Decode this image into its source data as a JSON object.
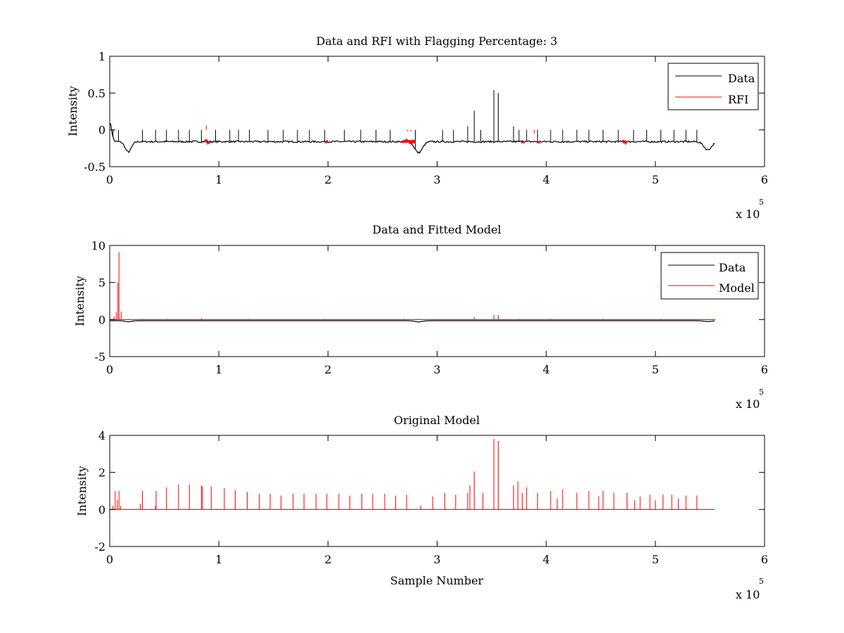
{
  "figure": {
    "background": "#ffffff",
    "axes_color": "#000000"
  },
  "chart_data": [
    {
      "type": "line",
      "title": "Data and RFI with Flagging Percentage: 3",
      "xlabel": "",
      "ylabel": "Intensity",
      "xlim": [
        0,
        600000
      ],
      "ylim": [
        -0.5,
        1
      ],
      "x_ticks": [
        "0",
        "1",
        "2",
        "3",
        "4",
        "5",
        "6"
      ],
      "y_ticks": [
        "-0.5",
        "0",
        "0.5",
        "1"
      ],
      "x_ticks_values": [
        0,
        100000,
        200000,
        300000,
        400000,
        500000,
        600000
      ],
      "y_ticks_values": [
        -0.5,
        0,
        0.5,
        1
      ],
      "x_exponent_label": "x 10",
      "x_exponent_power": "5",
      "legend_position": "top-right",
      "series": [
        {
          "name": "Data",
          "color": "#000000",
          "baseline": -0.16,
          "noise": 0.012,
          "x_end": 555000,
          "dips": [
            [
              0,
              0.1,
              2500
            ],
            [
              17000,
              -0.3,
              4000
            ],
            [
              283000,
              -0.31,
              5000
            ],
            [
              548000,
              -0.27,
              5000
            ]
          ],
          "spikes": [
            [
              3000,
              0.0
            ],
            [
              8000,
              0.0
            ],
            [
              30000,
              0.0
            ],
            [
              42000,
              0.0
            ],
            [
              52000,
              0.0
            ],
            [
              63000,
              0.0
            ],
            [
              73000,
              0.0
            ],
            [
              84000,
              0.0
            ],
            [
              97000,
              0.0
            ],
            [
              110000,
              0.0
            ],
            [
              118000,
              0.0
            ],
            [
              128000,
              0.0
            ],
            [
              145000,
              0.0
            ],
            [
              159000,
              0.0
            ],
            [
              172000,
              0.0
            ],
            [
              183000,
              0.0
            ],
            [
              197000,
              0.0
            ],
            [
              215000,
              0.0
            ],
            [
              230000,
              0.0
            ],
            [
              244000,
              0.0
            ],
            [
              257000,
              0.0
            ],
            [
              280000,
              0.0
            ],
            [
              305000,
              0.0
            ],
            [
              315000,
              0.0
            ],
            [
              328000,
              0.05
            ],
            [
              334000,
              0.26
            ],
            [
              340000,
              0.0
            ],
            [
              352000,
              0.54
            ],
            [
              356000,
              0.5
            ],
            [
              370000,
              0.05
            ],
            [
              375000,
              0.0
            ],
            [
              382000,
              0.0
            ],
            [
              392000,
              0.0
            ],
            [
              404000,
              0.0
            ],
            [
              415000,
              0.0
            ],
            [
              428000,
              0.0
            ],
            [
              439000,
              0.0
            ],
            [
              452000,
              0.0
            ],
            [
              466000,
              0.0
            ],
            [
              480000,
              0.0
            ],
            [
              492000,
              0.0
            ],
            [
              505000,
              0.0
            ],
            [
              517000,
              0.0
            ],
            [
              528000,
              0.0
            ],
            [
              538000,
              0.0
            ]
          ]
        },
        {
          "name": "RFI",
          "color": "#ff0000",
          "segments": [
            [
              87000,
              92000
            ],
            [
              198000,
              200000
            ],
            [
              268000,
              280000
            ],
            [
              378000,
              380000
            ],
            [
              392000,
              394000
            ],
            [
              470000,
              474000
            ]
          ],
          "spikes": [
            [
              88500,
              0.06
            ],
            [
              273000,
              -0.02
            ],
            [
              276000,
              -0.02
            ],
            [
              389000,
              -0.05
            ]
          ]
        }
      ]
    },
    {
      "type": "line",
      "title": "Data and Fitted Model",
      "xlabel": "",
      "ylabel": "Intensity",
      "xlim": [
        0,
        600000
      ],
      "ylim": [
        -5,
        10
      ],
      "x_ticks": [
        "0",
        "1",
        "2",
        "3",
        "4",
        "5",
        "6"
      ],
      "y_ticks": [
        "-5",
        "0",
        "5",
        "10"
      ],
      "x_ticks_values": [
        0,
        100000,
        200000,
        300000,
        400000,
        500000,
        600000
      ],
      "y_ticks_values": [
        -5,
        0,
        5,
        10
      ],
      "x_exponent_label": "x 10",
      "x_exponent_power": "5",
      "legend_position": "top-right",
      "series": [
        {
          "name": "Data",
          "color": "#000000",
          "baseline": -0.16,
          "x_end": 555000,
          "dips": [
            [
              17000,
              -0.3,
              4000
            ],
            [
              283000,
              -0.31,
              5000
            ],
            [
              548000,
              -0.27,
              5000
            ]
          ]
        },
        {
          "name": "Model",
          "color": "#ff0000",
          "x_end": 555000,
          "spikes": [
            [
              4000,
              0.4
            ],
            [
              6000,
              1.0
            ],
            [
              7500,
              5.0
            ],
            [
              8500,
              9.1
            ],
            [
              10500,
              1.1
            ],
            [
              30000,
              0.1
            ],
            [
              52000,
              0.1
            ],
            [
              84000,
              0.2
            ],
            [
              128000,
              0.1
            ],
            [
              197000,
              0.1
            ],
            [
              270000,
              0.1
            ],
            [
              334000,
              0.3
            ],
            [
              352000,
              0.6
            ],
            [
              356000,
              0.6
            ],
            [
              375000,
              0.1
            ],
            [
              404000,
              0.1
            ],
            [
              452000,
              0.1
            ],
            [
              505000,
              0.1
            ]
          ]
        }
      ]
    },
    {
      "type": "line",
      "title": "Original Model",
      "xlabel": "Sample Number",
      "ylabel": "Intensity",
      "xlim": [
        0,
        600000
      ],
      "ylim": [
        -2,
        4
      ],
      "x_ticks": [
        "0",
        "1",
        "2",
        "3",
        "4",
        "5",
        "6"
      ],
      "y_ticks": [
        "-2",
        "0",
        "2",
        "4"
      ],
      "x_ticks_values": [
        0,
        100000,
        200000,
        300000,
        400000,
        500000,
        600000
      ],
      "y_ticks_values": [
        -2,
        0,
        2,
        4
      ],
      "x_exponent_label": "x 10",
      "x_exponent_power": "5",
      "series": [
        {
          "color": "#ff0000",
          "baseline": 0,
          "x_end": 555000,
          "spikes": [
            [
              3000,
              0.2
            ],
            [
              5000,
              1.0
            ],
            [
              7000,
              0.5
            ],
            [
              8500,
              1.0
            ],
            [
              10000,
              0.2
            ],
            [
              28000,
              0.3
            ],
            [
              30000,
              1.0
            ],
            [
              42000,
              0.2
            ],
            [
              42500,
              1.0
            ],
            [
              52000,
              1.2
            ],
            [
              63000,
              1.35
            ],
            [
              73000,
              1.35
            ],
            [
              84000,
              1.3
            ],
            [
              85000,
              1.25
            ],
            [
              93000,
              1.25
            ],
            [
              105000,
              1.15
            ],
            [
              115000,
              1.05
            ],
            [
              126000,
              0.95
            ],
            [
              137000,
              0.85
            ],
            [
              147000,
              0.85
            ],
            [
              157000,
              0.75
            ],
            [
              168000,
              0.85
            ],
            [
              178000,
              0.85
            ],
            [
              189000,
              0.85
            ],
            [
              199000,
              0.85
            ],
            [
              210000,
              0.85
            ],
            [
              220000,
              0.75
            ],
            [
              231000,
              0.85
            ],
            [
              241000,
              0.85
            ],
            [
              252000,
              0.85
            ],
            [
              262000,
              0.75
            ],
            [
              272000,
              0.8
            ],
            [
              285000,
              0.2
            ],
            [
              296000,
              0.7
            ],
            [
              307000,
              0.9
            ],
            [
              317000,
              0.8
            ],
            [
              328000,
              0.9
            ],
            [
              330000,
              1.3
            ],
            [
              334000,
              2.05
            ],
            [
              342000,
              0.9
            ],
            [
              352000,
              3.8
            ],
            [
              356000,
              3.7
            ],
            [
              370000,
              1.3
            ],
            [
              374000,
              1.5
            ],
            [
              378000,
              0.9
            ],
            [
              382000,
              1.2
            ],
            [
              392000,
              0.9
            ],
            [
              404000,
              1.0
            ],
            [
              410000,
              0.6
            ],
            [
              415000,
              1.1
            ],
            [
              428000,
              0.9
            ],
            [
              439000,
              1.0
            ],
            [
              448000,
              0.7
            ],
            [
              452000,
              1.0
            ],
            [
              462000,
              0.9
            ],
            [
              474000,
              0.9
            ],
            [
              481000,
              0.5
            ],
            [
              486000,
              0.7
            ],
            [
              495000,
              0.8
            ],
            [
              500000,
              0.5
            ],
            [
              507000,
              0.8
            ],
            [
              515000,
              0.8
            ],
            [
              521000,
              0.6
            ],
            [
              528000,
              0.75
            ],
            [
              538000,
              0.75
            ]
          ]
        }
      ]
    }
  ]
}
